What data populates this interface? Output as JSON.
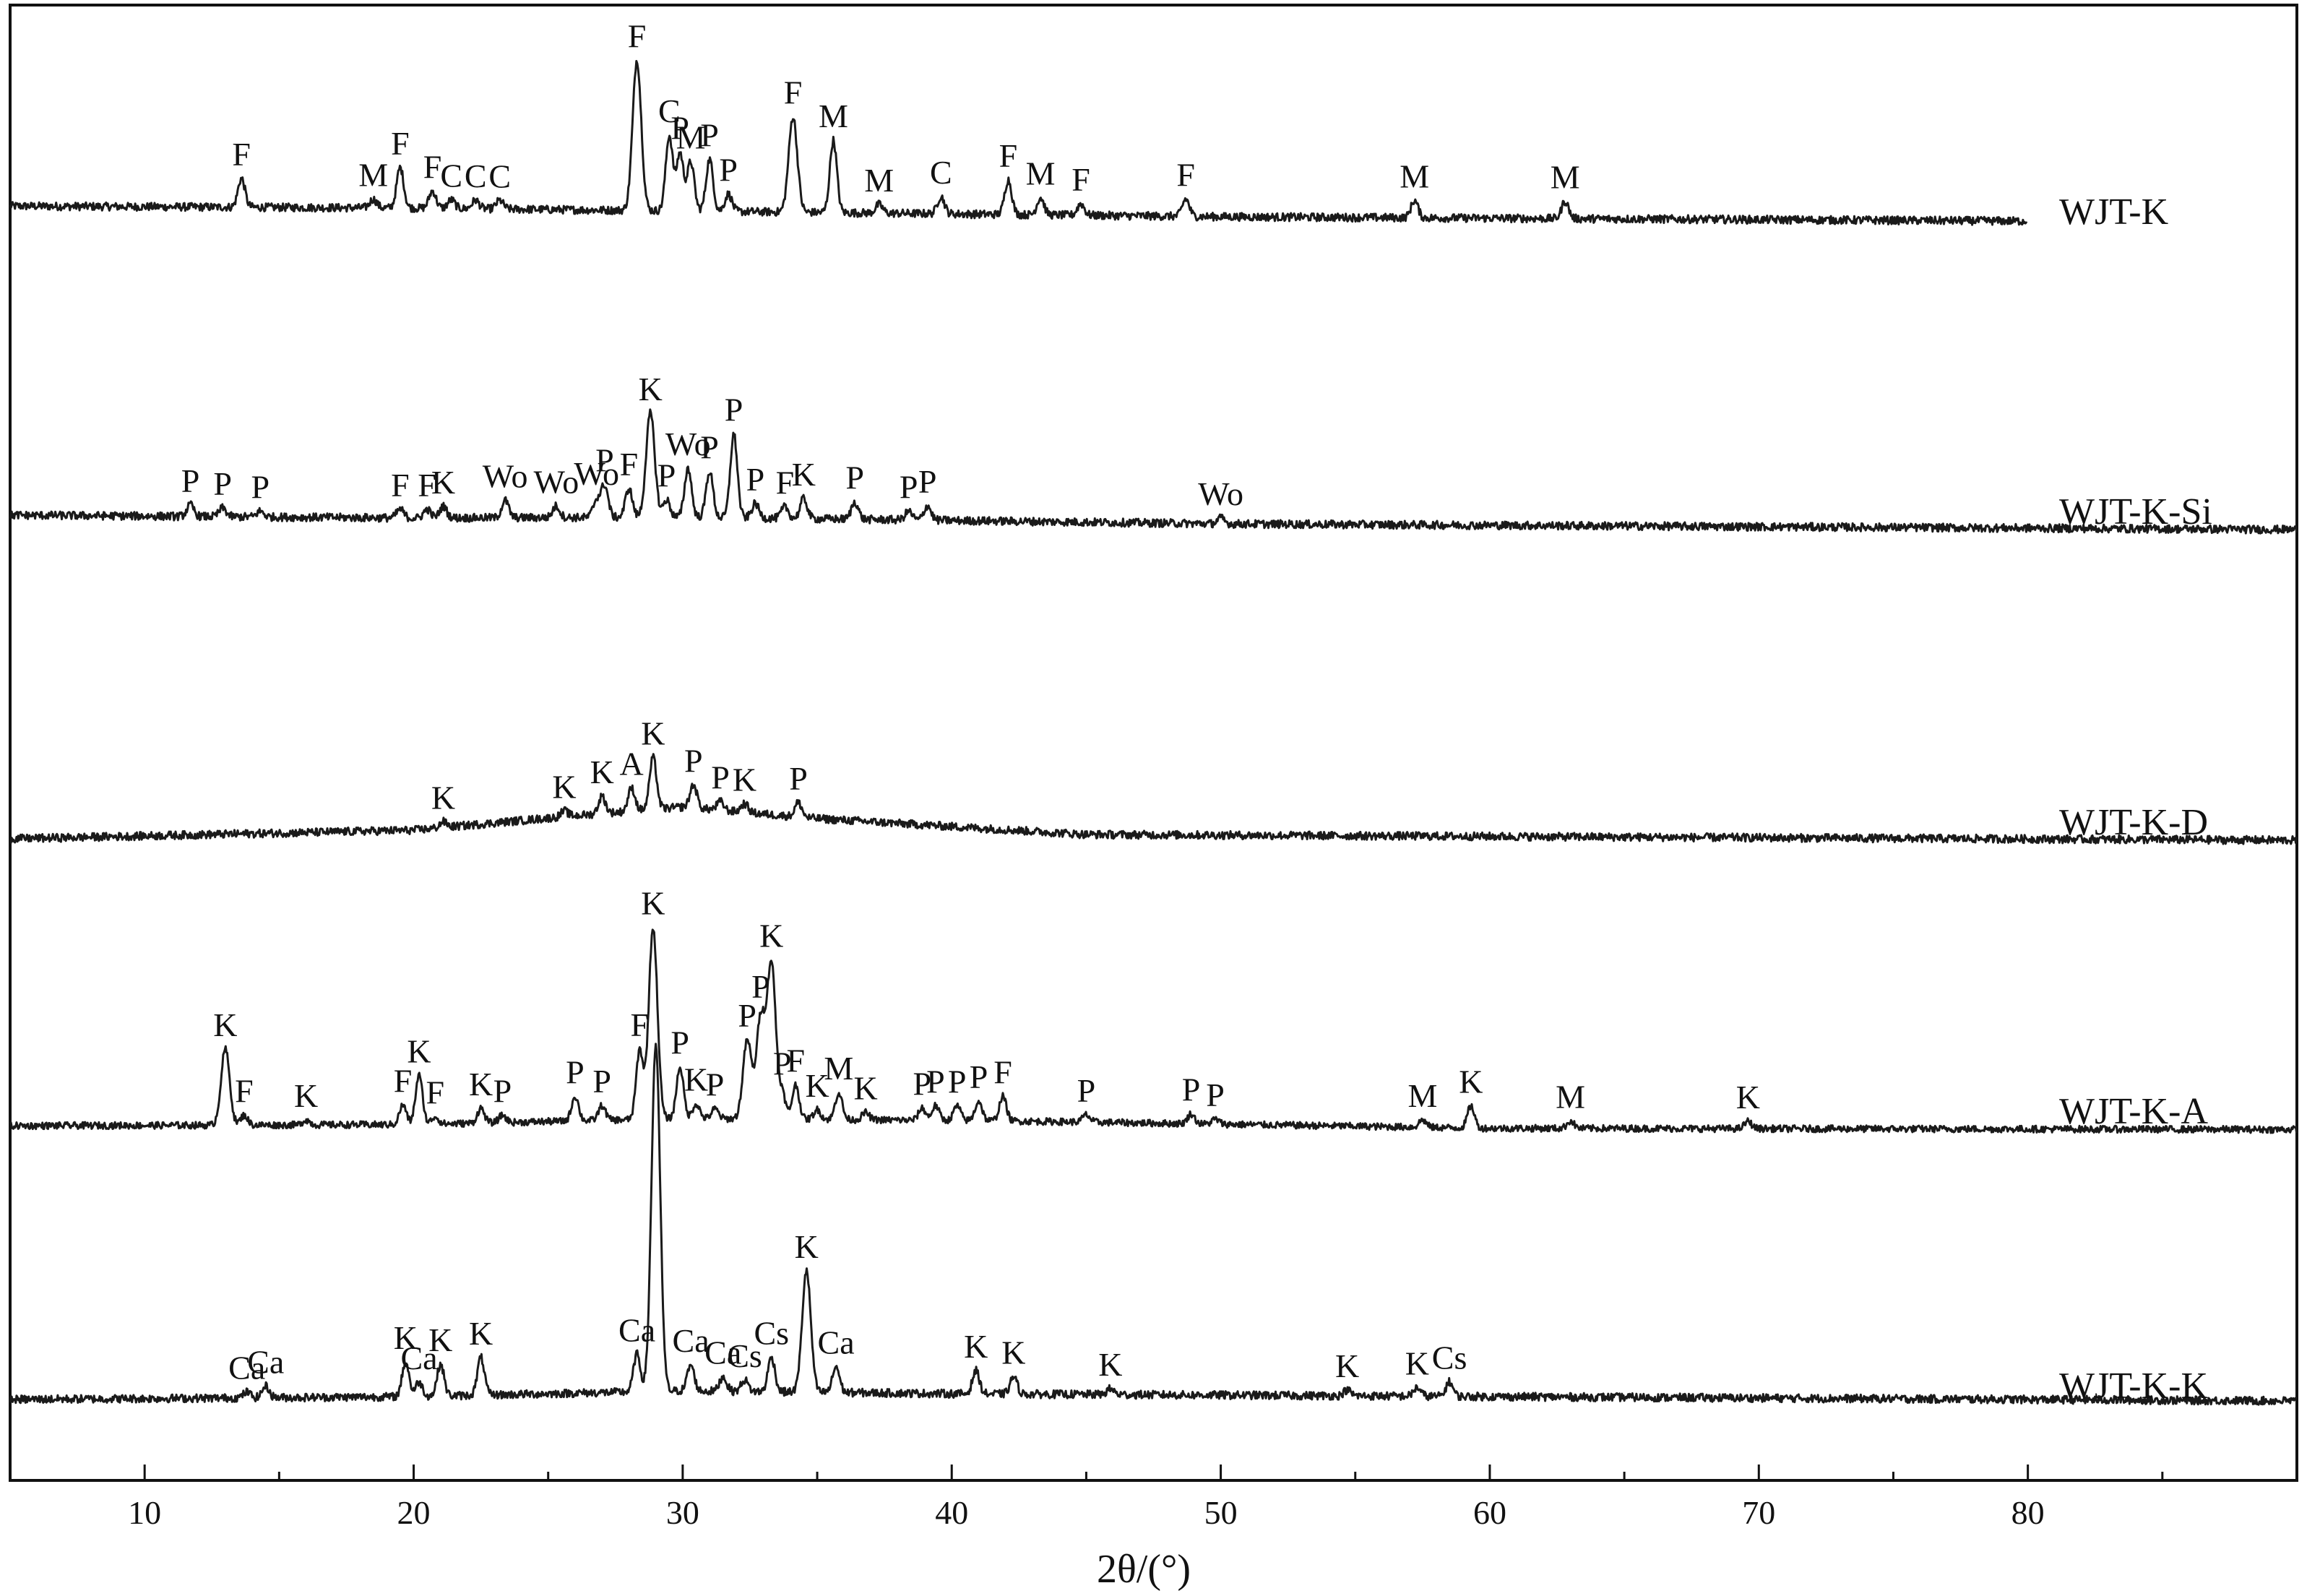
{
  "chart_data": {
    "type": "line",
    "xlabel": "2θ/(°)",
    "xlim": [
      5,
      90
    ],
    "x_ticks": [
      "10",
      "20",
      "30",
      "40",
      "50",
      "60",
      "70",
      "80"
    ],
    "y_ticks": [],
    "grid": false,
    "legend": "none",
    "line_color": "#1a1a1a",
    "series": [
      {
        "name": "WJT-K",
        "x_end": 80,
        "baseline": [
          [
            5,
            0.62
          ],
          [
            20,
            0.55
          ],
          [
            30,
            0.45
          ],
          [
            50,
            0.25
          ],
          [
            80,
            0.1
          ]
        ],
        "peaks": [
          {
            "x": 13.6,
            "h": 1.0,
            "label": "F"
          },
          {
            "x": 18.5,
            "h": 0.3,
            "label": "M"
          },
          {
            "x": 19.5,
            "h": 1.4,
            "label": "F"
          },
          {
            "x": 20.7,
            "h": 0.6,
            "label": "F"
          },
          {
            "x": 21.4,
            "h": 0.3,
            "label": "C"
          },
          {
            "x": 22.3,
            "h": 0.3,
            "label": "C"
          },
          {
            "x": 23.2,
            "h": 0.3,
            "label": "C"
          },
          {
            "x": 28.3,
            "h": 5.2,
            "label": "F"
          },
          {
            "x": 29.5,
            "h": 2.6,
            "label": "C"
          },
          {
            "x": 29.9,
            "h": 2.0,
            "label": "P"
          },
          {
            "x": 30.3,
            "h": 1.7,
            "label": "M"
          },
          {
            "x": 31.0,
            "h": 1.8,
            "label": "P"
          },
          {
            "x": 31.7,
            "h": 0.6,
            "label": "P"
          },
          {
            "x": 34.1,
            "h": 3.3,
            "label": "F"
          },
          {
            "x": 35.6,
            "h": 2.5,
            "label": "M"
          },
          {
            "x": 37.3,
            "h": 0.3,
            "label": "M"
          },
          {
            "x": 39.6,
            "h": 0.6,
            "label": "C"
          },
          {
            "x": 42.1,
            "h": 1.2,
            "label": "F"
          },
          {
            "x": 43.3,
            "h": 0.6,
            "label": "M"
          },
          {
            "x": 44.8,
            "h": 0.4,
            "label": "F"
          },
          {
            "x": 48.7,
            "h": 0.6,
            "label": "F"
          },
          {
            "x": 57.2,
            "h": 0.6,
            "label": "M"
          },
          {
            "x": 62.8,
            "h": 0.6,
            "label": "M"
          }
        ]
      },
      {
        "name": "WJT-K-Si",
        "x_end": 90,
        "baseline": [
          [
            5,
            0.55
          ],
          [
            20,
            0.45
          ],
          [
            30,
            0.48
          ],
          [
            50,
            0.25
          ],
          [
            90,
            0.05
          ]
        ],
        "peaks": [
          {
            "x": 11.7,
            "h": 0.4,
            "label": "P"
          },
          {
            "x": 12.9,
            "h": 0.3,
            "label": "P"
          },
          {
            "x": 14.3,
            "h": 0.2,
            "label": "P"
          },
          {
            "x": 19.5,
            "h": 0.3,
            "label": "F"
          },
          {
            "x": 20.5,
            "h": 0.3,
            "label": "F"
          },
          {
            "x": 21.1,
            "h": 0.4,
            "label": "K"
          },
          {
            "x": 23.4,
            "h": 0.6,
            "label": "Wo"
          },
          {
            "x": 25.3,
            "h": 0.4,
            "label": "Wo"
          },
          {
            "x": 26.8,
            "h": 0.6,
            "label": "Wo"
          },
          {
            "x": 27.1,
            "h": 1.1,
            "label": "P"
          },
          {
            "x": 28.0,
            "h": 1.0,
            "label": "F"
          },
          {
            "x": 28.8,
            "h": 3.6,
            "label": "K"
          },
          {
            "x": 29.4,
            "h": 0.6,
            "label": "P"
          },
          {
            "x": 30.2,
            "h": 1.7,
            "label": "Wo"
          },
          {
            "x": 31.0,
            "h": 1.6,
            "label": "P"
          },
          {
            "x": 31.9,
            "h": 2.9,
            "label": "P"
          },
          {
            "x": 32.7,
            "h": 0.5,
            "label": "P"
          },
          {
            "x": 33.8,
            "h": 0.4,
            "label": "F"
          },
          {
            "x": 34.5,
            "h": 0.7,
            "label": "K"
          },
          {
            "x": 36.4,
            "h": 0.6,
            "label": "P"
          },
          {
            "x": 38.4,
            "h": 0.3,
            "label": "P"
          },
          {
            "x": 39.1,
            "h": 0.5,
            "label": "P"
          },
          {
            "x": 50.0,
            "h": 0.2,
            "label": "Wo"
          }
        ]
      },
      {
        "name": "WJT-K-D",
        "x_end": 90,
        "baseline": [
          [
            5,
            0.1
          ],
          [
            20,
            0.4
          ],
          [
            26,
            0.9
          ],
          [
            30,
            1.2
          ],
          [
            35,
            0.8
          ],
          [
            45,
            0.25
          ],
          [
            90,
            0.05
          ]
        ],
        "peaks": [
          {
            "x": 21.1,
            "h": 0.2,
            "label": "K"
          },
          {
            "x": 25.6,
            "h": 0.2,
            "label": "K"
          },
          {
            "x": 27.0,
            "h": 0.6,
            "label": "K"
          },
          {
            "x": 28.1,
            "h": 0.8,
            "label": "A"
          },
          {
            "x": 28.9,
            "h": 1.8,
            "label": "K"
          },
          {
            "x": 30.4,
            "h": 0.8,
            "label": "P"
          },
          {
            "x": 31.4,
            "h": 0.3,
            "label": "P"
          },
          {
            "x": 32.3,
            "h": 0.3,
            "label": "K"
          },
          {
            "x": 34.3,
            "h": 0.5,
            "label": "P"
          }
        ]
      },
      {
        "name": "WJT-K-A",
        "x_end": 90,
        "baseline": [
          [
            5,
            0.2
          ],
          [
            20,
            0.25
          ],
          [
            30,
            0.5
          ],
          [
            42,
            0.4
          ],
          [
            60,
            0.1
          ],
          [
            90,
            0.05
          ]
        ],
        "peaks": [
          {
            "x": 13.0,
            "h": 3.1,
            "label": "K"
          },
          {
            "x": 13.7,
            "h": 0.4,
            "label": "F"
          },
          {
            "x": 16.0,
            "h": 0.2,
            "label": "K"
          },
          {
            "x": 19.6,
            "h": 0.8,
            "label": "F"
          },
          {
            "x": 20.2,
            "h": 2.0,
            "label": "K"
          },
          {
            "x": 20.8,
            "h": 0.3,
            "label": "F"
          },
          {
            "x": 22.5,
            "h": 0.6,
            "label": "K"
          },
          {
            "x": 23.3,
            "h": 0.3,
            "label": "P"
          },
          {
            "x": 26.0,
            "h": 1.0,
            "label": "P"
          },
          {
            "x": 27.0,
            "h": 0.6,
            "label": "P"
          },
          {
            "x": 28.4,
            "h": 2.8,
            "label": "F"
          },
          {
            "x": 28.9,
            "h": 7.8,
            "label": "K"
          },
          {
            "x": 29.9,
            "h": 2.1,
            "label": "P"
          },
          {
            "x": 30.5,
            "h": 0.6,
            "label": "K"
          },
          {
            "x": 31.2,
            "h": 0.4,
            "label": "P"
          },
          {
            "x": 32.4,
            "h": 3.2,
            "label": "P"
          },
          {
            "x": 32.9,
            "h": 4.1,
            "label": "P"
          },
          {
            "x": 33.3,
            "h": 6.3,
            "label": "K"
          },
          {
            "x": 33.7,
            "h": 1.0,
            "label": "P"
          },
          {
            "x": 34.2,
            "h": 1.4,
            "label": "F"
          },
          {
            "x": 35.0,
            "h": 0.4,
            "label": "K"
          },
          {
            "x": 35.8,
            "h": 1.1,
            "label": "M"
          },
          {
            "x": 36.8,
            "h": 0.3,
            "label": "K"
          },
          {
            "x": 38.9,
            "h": 0.5,
            "label": "P"
          },
          {
            "x": 39.4,
            "h": 0.6,
            "label": "P"
          },
          {
            "x": 40.2,
            "h": 0.6,
            "label": "P"
          },
          {
            "x": 41.0,
            "h": 0.8,
            "label": "P"
          },
          {
            "x": 41.9,
            "h": 1.0,
            "label": "F"
          },
          {
            "x": 45.0,
            "h": 0.3,
            "label": "P"
          },
          {
            "x": 48.9,
            "h": 0.4,
            "label": "P"
          },
          {
            "x": 49.8,
            "h": 0.2,
            "label": "P"
          },
          {
            "x": 57.5,
            "h": 0.3,
            "label": "M"
          },
          {
            "x": 59.3,
            "h": 0.9,
            "label": "K"
          },
          {
            "x": 63.0,
            "h": 0.3,
            "label": "M"
          },
          {
            "x": 69.6,
            "h": 0.3,
            "label": "K"
          }
        ]
      },
      {
        "name": "WJT-K-K",
        "x_end": 90,
        "baseline": [
          [
            5,
            0.2
          ],
          [
            20,
            0.3
          ],
          [
            30,
            0.5
          ],
          [
            40,
            0.4
          ],
          [
            60,
            0.3
          ],
          [
            90,
            0.15
          ]
        ],
        "peaks": [
          {
            "x": 13.8,
            "h": 0.2,
            "label": "Ca"
          },
          {
            "x": 14.5,
            "h": 0.4,
            "label": "Ca"
          },
          {
            "x": 19.7,
            "h": 1.2,
            "label": "K"
          },
          {
            "x": 20.2,
            "h": 0.5,
            "label": "Ca"
          },
          {
            "x": 21.0,
            "h": 1.1,
            "label": "K"
          },
          {
            "x": 22.5,
            "h": 1.3,
            "label": "K"
          },
          {
            "x": 28.3,
            "h": 1.3,
            "label": "Ca"
          },
          {
            "x": 29.0,
            "h": 12.0,
            "label": "",
            "no_label": true
          },
          {
            "x": 30.3,
            "h": 0.9,
            "label": "Ca"
          },
          {
            "x": 31.5,
            "h": 0.5,
            "label": "Ca"
          },
          {
            "x": 32.3,
            "h": 0.4,
            "label": "Cs"
          },
          {
            "x": 33.3,
            "h": 1.2,
            "label": "Cs"
          },
          {
            "x": 34.6,
            "h": 4.2,
            "label": "K"
          },
          {
            "x": 35.7,
            "h": 0.9,
            "label": "Ca"
          },
          {
            "x": 40.9,
            "h": 0.8,
            "label": "K"
          },
          {
            "x": 42.3,
            "h": 0.6,
            "label": "K"
          },
          {
            "x": 45.9,
            "h": 0.2,
            "label": "K"
          },
          {
            "x": 54.7,
            "h": 0.2,
            "label": "K"
          },
          {
            "x": 57.3,
            "h": 0.3,
            "label": "K"
          },
          {
            "x": 58.5,
            "h": 0.5,
            "label": "Cs"
          }
        ]
      }
    ]
  }
}
